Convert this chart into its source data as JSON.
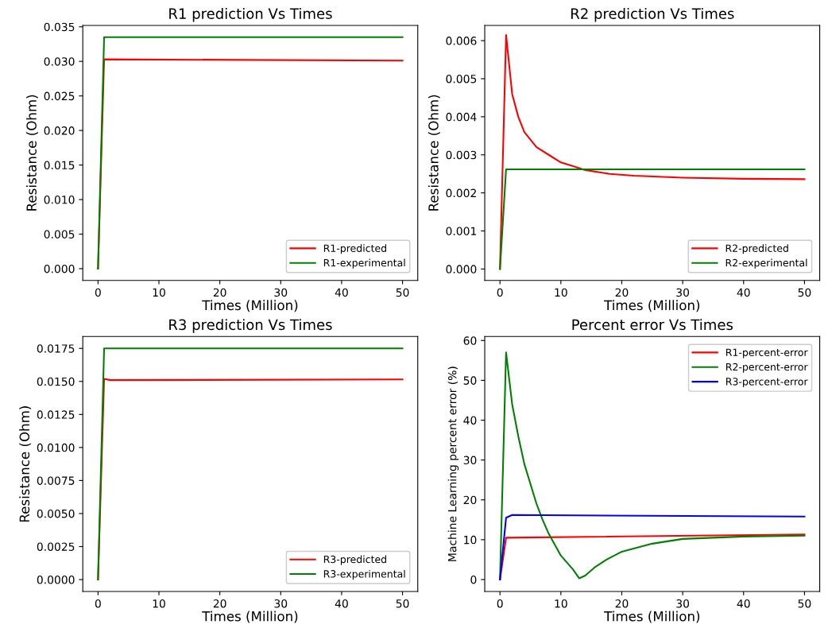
{
  "chart_data": [
    {
      "type": "line",
      "title": "R1 prediction Vs Times",
      "xlabel": "Times (Million)",
      "ylabel": "Resistance (Ohm)",
      "xlim": [
        -2.5,
        52.5
      ],
      "xticks": [
        0,
        10,
        20,
        30,
        40,
        50
      ],
      "ylim": [
        -0.0017,
        0.0352
      ],
      "yticks": [
        {
          "value": 0,
          "label": "0.000"
        },
        {
          "value": 0.005,
          "label": "0.005"
        },
        {
          "value": 0.01,
          "label": "0.010"
        },
        {
          "value": 0.015,
          "label": "0.015"
        },
        {
          "value": 0.02,
          "label": "0.020"
        },
        {
          "value": 0.025,
          "label": "0.025"
        },
        {
          "value": 0.03,
          "label": "0.030"
        },
        {
          "value": 0.035,
          "label": "0.035"
        }
      ],
      "legend": "lower right",
      "series": [
        {
          "name": "R1-predicted",
          "color": "#ff0000",
          "x": [
            0,
            1,
            50
          ],
          "values": [
            0,
            0.0303,
            0.0301
          ]
        },
        {
          "name": "R1-experimental",
          "color": "#008000",
          "x": [
            0,
            1,
            50
          ],
          "values": [
            0,
            0.0335,
            0.0335
          ]
        }
      ]
    },
    {
      "type": "line",
      "title": "R2 prediction Vs Times",
      "xlabel": "Times (Million)",
      "ylabel": "Resistance (Ohm)",
      "xlim": [
        -2.5,
        52.5
      ],
      "xticks": [
        0,
        10,
        20,
        30,
        40,
        50
      ],
      "ylim": [
        -0.0003,
        0.0064
      ],
      "yticks": [
        {
          "value": 0,
          "label": "0.000"
        },
        {
          "value": 0.001,
          "label": "0.001"
        },
        {
          "value": 0.002,
          "label": "0.002"
        },
        {
          "value": 0.003,
          "label": "0.003"
        },
        {
          "value": 0.004,
          "label": "0.004"
        },
        {
          "value": 0.005,
          "label": "0.005"
        },
        {
          "value": 0.006,
          "label": "0.006"
        }
      ],
      "legend": "lower right",
      "series": [
        {
          "name": "R2-predicted",
          "color": "#ff0000",
          "x": [
            0,
            1,
            2,
            3,
            4,
            5,
            6,
            8,
            10,
            12,
            14,
            18,
            22,
            30,
            40,
            50
          ],
          "values": [
            0,
            0.00615,
            0.0046,
            0.004,
            0.0036,
            0.0034,
            0.0032,
            0.003,
            0.0028,
            0.0027,
            0.0026,
            0.0025,
            0.00245,
            0.0024,
            0.00237,
            0.00236
          ]
        },
        {
          "name": "R2-experimental",
          "color": "#008000",
          "x": [
            0,
            1,
            50
          ],
          "values": [
            0,
            0.00262,
            0.00262
          ]
        }
      ]
    },
    {
      "type": "line",
      "title": "R3 prediction Vs Times",
      "xlabel": "Times (Million)",
      "ylabel": "Resistance (Ohm)",
      "xlim": [
        -2.5,
        52.5
      ],
      "xticks": [
        0,
        10,
        20,
        30,
        40,
        50
      ],
      "ylim": [
        -0.0009,
        0.0184
      ],
      "yticks": [
        {
          "value": 0,
          "label": "0.0000"
        },
        {
          "value": 0.0025,
          "label": "0.0025"
        },
        {
          "value": 0.005,
          "label": "0.0050"
        },
        {
          "value": 0.0075,
          "label": "0.0075"
        },
        {
          "value": 0.01,
          "label": "0.0100"
        },
        {
          "value": 0.0125,
          "label": "0.0125"
        },
        {
          "value": 0.015,
          "label": "0.0150"
        },
        {
          "value": 0.0175,
          "label": "0.0175"
        }
      ],
      "legend": "lower right",
      "series": [
        {
          "name": "R3-predicted",
          "color": "#ff0000",
          "x": [
            0,
            1,
            2,
            50
          ],
          "values": [
            0,
            0.0152,
            0.0151,
            0.01515
          ]
        },
        {
          "name": "R3-experimental",
          "color": "#008000",
          "x": [
            0,
            1,
            50
          ],
          "values": [
            0,
            0.0175,
            0.0175
          ]
        }
      ]
    },
    {
      "type": "line",
      "title": "Percent error Vs Times",
      "xlabel": "Times (Million)",
      "ylabel": "Machine Learning percent error (%)",
      "xlim": [
        -2.5,
        52.5
      ],
      "xticks": [
        0,
        10,
        20,
        30,
        40,
        50
      ],
      "ylim": [
        -3,
        61
      ],
      "yticks": [
        0,
        10,
        20,
        30,
        40,
        50,
        60
      ],
      "legend": "upper right",
      "series": [
        {
          "name": "R1-percent-error",
          "color": "#ff0000",
          "x": [
            0,
            1,
            50
          ],
          "values": [
            0,
            10.5,
            11.3
          ]
        },
        {
          "name": "R2-percent-error",
          "color": "#008000",
          "x": [
            0,
            1,
            2,
            3,
            4,
            5,
            6,
            7,
            8,
            10,
            12,
            13,
            14,
            15.5,
            17.5,
            20,
            25,
            30,
            40,
            50
          ],
          "values": [
            0,
            57,
            44,
            36,
            29,
            24,
            19,
            15,
            11.5,
            6,
            2.5,
            0.3,
            1,
            3,
            5,
            7,
            9,
            10.2,
            10.8,
            11
          ]
        },
        {
          "name": "R3-percent-error",
          "color": "#0000ff",
          "x": [
            0,
            1,
            2,
            50
          ],
          "values": [
            0,
            15.5,
            16.2,
            15.8
          ]
        }
      ]
    }
  ]
}
